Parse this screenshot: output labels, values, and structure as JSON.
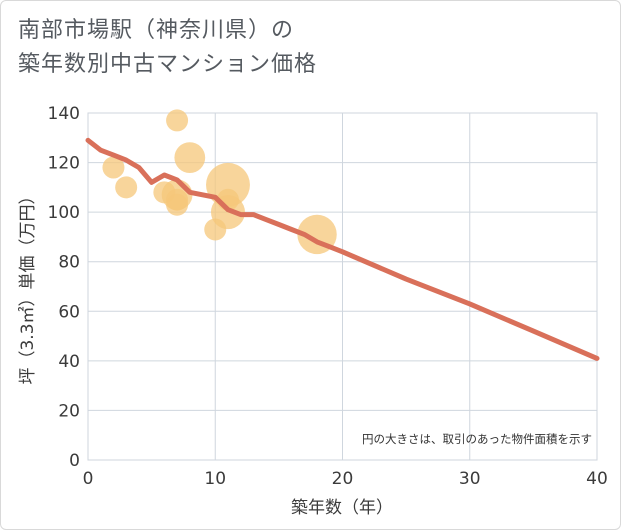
{
  "title_line1": "南部市場駅（神奈川県）の",
  "title_line2": "築年数別中古マンション価格",
  "chart_data": {
    "type": "scatter",
    "xlabel": "築年数（年）",
    "ylabel": "坪（3.3㎡）単価（万円）",
    "xlim": [
      0,
      40
    ],
    "ylim": [
      0,
      140
    ],
    "x_ticks": [
      "0",
      "10",
      "20",
      "30",
      "40"
    ],
    "y_ticks": [
      "0",
      "20",
      "40",
      "60",
      "80",
      "100",
      "120",
      "140"
    ],
    "grid": true,
    "note": "円の大きさは、取引のあった物件面積を示す",
    "bubble_color": "#f5c77a",
    "line_color": "#d9705a",
    "bubbles": [
      {
        "x": 2,
        "y": 118,
        "size": 1
      },
      {
        "x": 3,
        "y": 110,
        "size": 1
      },
      {
        "x": 6,
        "y": 108,
        "size": 1
      },
      {
        "x": 7,
        "y": 137,
        "size": 1
      },
      {
        "x": 7,
        "y": 107,
        "size": 3
      },
      {
        "x": 7,
        "y": 105,
        "size": 1
      },
      {
        "x": 7,
        "y": 103,
        "size": 1
      },
      {
        "x": 8,
        "y": 122,
        "size": 3
      },
      {
        "x": 10,
        "y": 93,
        "size": 1
      },
      {
        "x": 11,
        "y": 111,
        "size": 8
      },
      {
        "x": 11,
        "y": 105,
        "size": 1
      },
      {
        "x": 11,
        "y": 100,
        "size": 4
      },
      {
        "x": 18,
        "y": 91,
        "size": 6
      }
    ],
    "trend_x": [
      0,
      1,
      2,
      3,
      4,
      5,
      6,
      7,
      8,
      9,
      10,
      11,
      12,
      13,
      14,
      15,
      16,
      17,
      18,
      19,
      20,
      25,
      30,
      35,
      40
    ],
    "trend_y": [
      129,
      125,
      123,
      121,
      118,
      112,
      115,
      113,
      108,
      107,
      106,
      101,
      99,
      99,
      97,
      95,
      93,
      91,
      88,
      86,
      84,
      73,
      63,
      52,
      41
    ]
  }
}
